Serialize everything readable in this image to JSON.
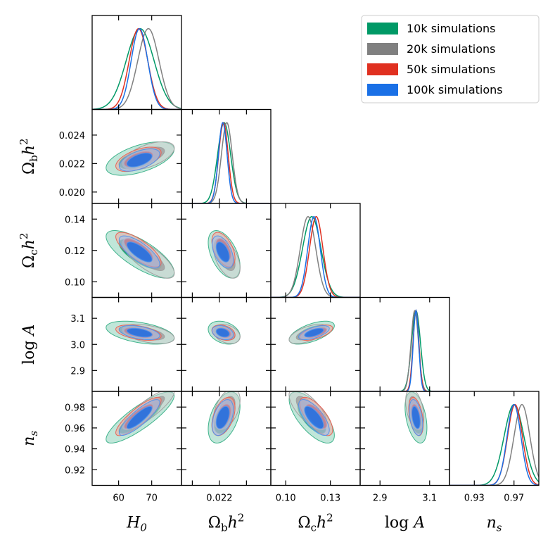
{
  "chart_data": {
    "type": "corner",
    "parameters": [
      {
        "name": "H0",
        "label": "H",
        "sub": "0",
        "range": [
          52,
          79
        ],
        "ticks": [
          60,
          70
        ],
        "tick_labels": [
          "60",
          "70"
        ]
      },
      {
        "name": "Omega_b h^2",
        "label": "Ω",
        "sub": "b",
        "suffix": "h",
        "sup": "2",
        "range": [
          0.0192,
          0.0258
        ],
        "ticks": [
          0.02,
          0.022,
          0.024
        ],
        "tick_labels": [
          "0.020",
          "0.022",
          "0.024"
        ],
        "x_tick_labels": [
          "",
          "0.022",
          ""
        ]
      },
      {
        "name": "Omega_c h^2",
        "label": "Ω",
        "sub": "c",
        "suffix": "h",
        "sup": "2",
        "range": [
          0.09,
          0.15
        ],
        "ticks": [
          0.1,
          0.13
        ],
        "tick_labels": [
          "0.10",
          "0.13"
        ],
        "y_ticks": [
          0.1,
          0.12,
          0.14
        ],
        "y_tick_labels": [
          "0.10",
          "0.12",
          "0.14"
        ]
      },
      {
        "name": "log A",
        "label": "log A",
        "range": [
          2.82,
          3.18
        ],
        "ticks": [
          2.9,
          3.1
        ],
        "tick_labels": [
          "2.9",
          "3.1"
        ],
        "y_ticks": [
          2.9,
          3.0,
          3.1
        ],
        "y_tick_labels": [
          "2.9",
          "3.0",
          "3.1"
        ]
      },
      {
        "name": "n_s",
        "label": "n",
        "sub": "s",
        "range": [
          0.905,
          0.995
        ],
        "ticks": [
          0.93,
          0.97
        ],
        "tick_labels": [
          "0.93",
          "0.97"
        ],
        "y_ticks": [
          0.92,
          0.94,
          0.96,
          0.98
        ],
        "y_tick_labels": [
          "0.92",
          "0.94",
          "0.96",
          "0.98"
        ]
      }
    ],
    "series": [
      {
        "name": "10k simulations",
        "color": "#009966",
        "means": [
          66.5,
          0.02235,
          0.1175,
          3.045,
          0.97
        ],
        "sigmas": [
          4.2,
          0.00048,
          0.0062,
          0.018,
          0.01
        ],
        "corr": [
          [
            1,
            0.55,
            -0.75,
            -0.45,
            0.85
          ],
          [
            0.55,
            1,
            -0.5,
            -0.3,
            0.45
          ],
          [
            -0.75,
            -0.5,
            1,
            0.6,
            -0.7
          ],
          [
            -0.45,
            -0.3,
            0.6,
            1,
            -0.4
          ],
          [
            0.85,
            0.45,
            -0.7,
            -0.4,
            1
          ]
        ]
      },
      {
        "name": "20k simulations",
        "color": "#808080",
        "means": [
          69.0,
          0.02255,
          0.115,
          3.04,
          0.978
        ],
        "sigmas": [
          3.2,
          0.0004,
          0.0052,
          0.015,
          0.008
        ],
        "corr": [
          [
            1,
            0.55,
            -0.75,
            -0.45,
            0.85
          ],
          [
            0.55,
            1,
            -0.5,
            -0.3,
            0.45
          ],
          [
            -0.75,
            -0.5,
            1,
            0.6,
            -0.7
          ],
          [
            -0.45,
            -0.3,
            0.6,
            1,
            -0.4
          ],
          [
            0.85,
            0.45,
            -0.7,
            -0.4,
            1
          ]
        ]
      },
      {
        "name": "50k simulations",
        "color": "#e03020",
        "means": [
          66.0,
          0.0223,
          0.1205,
          3.045,
          0.971
        ],
        "sigmas": [
          2.8,
          0.00035,
          0.0045,
          0.012,
          0.0075
        ],
        "corr": [
          [
            1,
            0.55,
            -0.75,
            -0.45,
            0.85
          ],
          [
            0.55,
            1,
            -0.5,
            -0.3,
            0.45
          ],
          [
            -0.75,
            -0.5,
            1,
            0.6,
            -0.7
          ],
          [
            -0.45,
            -0.3,
            0.6,
            1,
            -0.4
          ],
          [
            0.85,
            0.45,
            -0.7,
            -0.4,
            1
          ]
        ]
      },
      {
        "name": "100k simulations",
        "color": "#1a70e6",
        "means": [
          66.3,
          0.02225,
          0.119,
          3.045,
          0.97
        ],
        "sigmas": [
          2.5,
          0.00032,
          0.0042,
          0.011,
          0.007
        ],
        "corr": [
          [
            1,
            0.55,
            -0.75,
            -0.45,
            0.85
          ],
          [
            0.55,
            1,
            -0.5,
            -0.3,
            0.45
          ],
          [
            -0.75,
            -0.5,
            1,
            0.6,
            -0.7
          ],
          [
            -0.45,
            -0.3,
            0.6,
            1,
            -0.4
          ],
          [
            0.85,
            0.45,
            -0.7,
            -0.4,
            1
          ]
        ]
      }
    ],
    "legend": {
      "placement": "top-right",
      "entries": [
        "10k simulations",
        "20k simulations",
        "50k simulations",
        "100k simulations"
      ]
    }
  }
}
